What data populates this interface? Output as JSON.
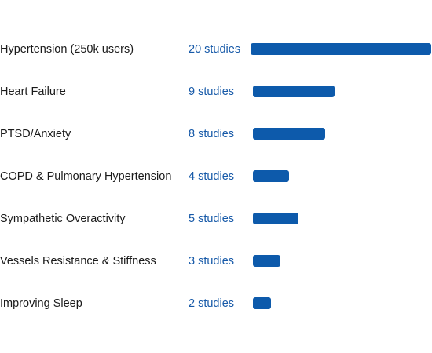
{
  "chart_data": {
    "type": "bar",
    "orientation": "horizontal",
    "categories": [
      "Hypertension (250k users)",
      "Heart Failure",
      "PTSD/Anxiety",
      "COPD & Pulmonary Hypertension",
      "Sympathetic Overactivity",
      "Vessels Resistance & Stiffness",
      "Improving Sleep"
    ],
    "values": [
      20,
      9,
      8,
      4,
      5,
      3,
      2
    ],
    "value_unit": "studies",
    "title": "",
    "xlabel": "",
    "ylabel": "",
    "xlim": [
      0,
      20
    ],
    "grid": false,
    "colors": {
      "bar": "#0d5aab",
      "value_text": "#1659a8",
      "label_text": "#1a1a1a"
    }
  }
}
